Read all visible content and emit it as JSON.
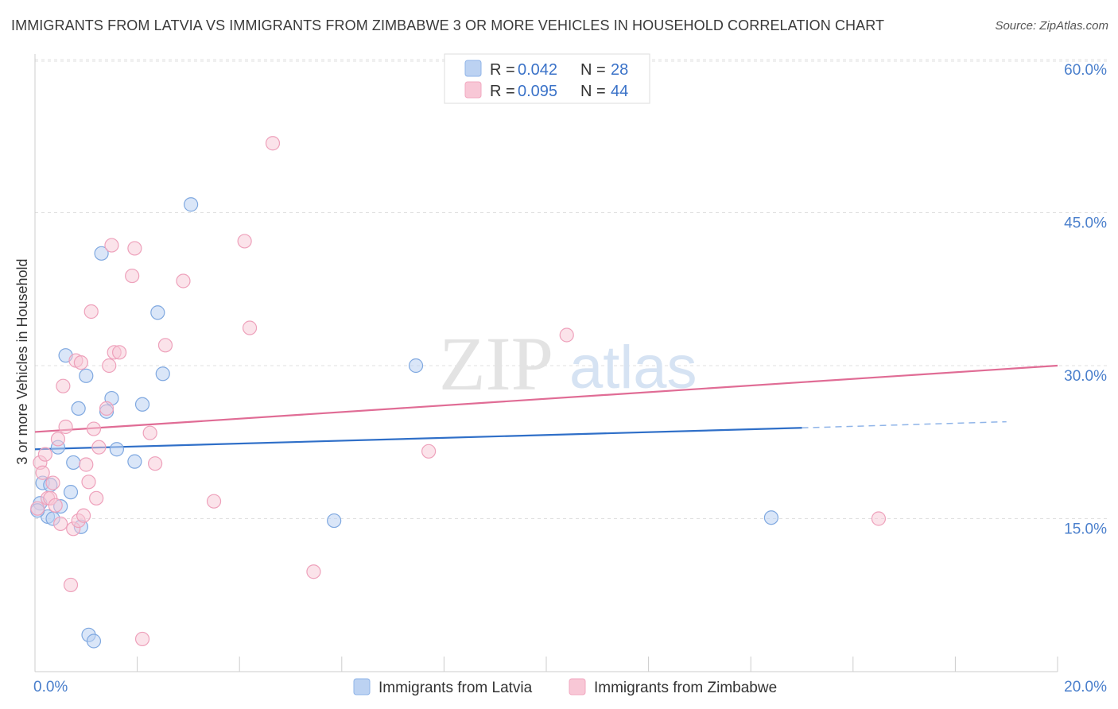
{
  "header": {
    "title": "IMMIGRANTS FROM LATVIA VS IMMIGRANTS FROM ZIMBABWE 3 OR MORE VEHICLES IN HOUSEHOLD CORRELATION CHART",
    "source": "Source: ZipAtlas.com"
  },
  "watermark": {
    "zip": "ZIP",
    "atlas": "atlas"
  },
  "legend": {
    "r_label": "R =",
    "n_label": "N =",
    "latvia": {
      "r": "0.042",
      "n": "28"
    },
    "zimbabwe": {
      "r": "0.095",
      "n": "44"
    }
  },
  "chart_data": {
    "type": "scatter",
    "title": "IMMIGRANTS FROM LATVIA VS IMMIGRANTS FROM ZIMBABWE 3 OR MORE VEHICLES IN HOUSEHOLD CORRELATION CHART",
    "ylabel": "3 or more Vehicles in Household",
    "xlim": [
      0,
      20
    ],
    "ylim": [
      0,
      60
    ],
    "x_tick_labels": [
      "0.0%",
      "20.0%"
    ],
    "y_ticks": [
      15,
      30,
      45,
      60
    ],
    "y_tick_labels": [
      "15.0%",
      "30.0%",
      "45.0%",
      "60.0%"
    ],
    "grid": "horizontal dashed",
    "legend_position": "top-center",
    "colors": {
      "latvia": "#8fb4e8",
      "latvia_line": "#2f6fc8",
      "zimbabwe": "#f2a8c0",
      "zimbabwe_line": "#e06c95"
    },
    "series": [
      {
        "name": "Immigrants from Latvia",
        "points": [
          [
            0.1,
            16.5
          ],
          [
            0.15,
            18.5
          ],
          [
            0.25,
            15.2
          ],
          [
            0.3,
            18.3
          ],
          [
            0.45,
            22.0
          ],
          [
            0.5,
            16.2
          ],
          [
            0.6,
            31.0
          ],
          [
            0.7,
            17.6
          ],
          [
            0.75,
            20.5
          ],
          [
            0.85,
            25.8
          ],
          [
            0.9,
            14.2
          ],
          [
            1.0,
            29.0
          ],
          [
            1.05,
            3.6
          ],
          [
            1.15,
            3.0
          ],
          [
            1.3,
            41.0
          ],
          [
            1.4,
            25.5
          ],
          [
            1.5,
            26.8
          ],
          [
            1.6,
            21.8
          ],
          [
            1.95,
            20.6
          ],
          [
            2.1,
            26.2
          ],
          [
            2.4,
            35.2
          ],
          [
            2.5,
            29.2
          ],
          [
            3.05,
            45.8
          ],
          [
            7.45,
            30.0
          ],
          [
            5.85,
            14.8
          ],
          [
            14.4,
            15.1
          ],
          [
            0.05,
            15.8
          ],
          [
            0.35,
            15.0
          ]
        ],
        "trend": {
          "x": [
            0,
            15.0
          ],
          "y": [
            21.8,
            23.9
          ]
        },
        "trend_extension": {
          "x": [
            15.0,
            19.0
          ],
          "y": [
            23.9,
            24.5
          ]
        }
      },
      {
        "name": "Immigrants from Zimbabwe",
        "points": [
          [
            0.05,
            16.0
          ],
          [
            0.1,
            20.5
          ],
          [
            0.15,
            19.5
          ],
          [
            0.2,
            21.3
          ],
          [
            0.25,
            17.0
          ],
          [
            0.3,
            17.0
          ],
          [
            0.35,
            18.5
          ],
          [
            0.45,
            22.8
          ],
          [
            0.5,
            14.5
          ],
          [
            0.55,
            28.0
          ],
          [
            0.6,
            24.0
          ],
          [
            0.7,
            8.5
          ],
          [
            0.75,
            14.0
          ],
          [
            0.8,
            30.5
          ],
          [
            0.85,
            14.8
          ],
          [
            0.9,
            30.3
          ],
          [
            0.95,
            15.3
          ],
          [
            1.0,
            20.3
          ],
          [
            1.05,
            18.6
          ],
          [
            1.1,
            35.3
          ],
          [
            1.15,
            23.8
          ],
          [
            1.2,
            17.0
          ],
          [
            1.25,
            22.0
          ],
          [
            1.4,
            25.8
          ],
          [
            1.45,
            30.0
          ],
          [
            1.5,
            41.8
          ],
          [
            1.55,
            31.3
          ],
          [
            1.65,
            31.3
          ],
          [
            1.9,
            38.8
          ],
          [
            1.95,
            41.5
          ],
          [
            2.1,
            3.2
          ],
          [
            2.25,
            23.4
          ],
          [
            2.35,
            20.4
          ],
          [
            2.55,
            32.0
          ],
          [
            2.9,
            38.3
          ],
          [
            3.5,
            16.7
          ],
          [
            4.1,
            42.2
          ],
          [
            4.2,
            33.7
          ],
          [
            4.65,
            51.8
          ],
          [
            5.45,
            9.8
          ],
          [
            7.7,
            21.6
          ],
          [
            10.4,
            33.0
          ],
          [
            16.5,
            15.0
          ],
          [
            0.4,
            16.3
          ]
        ],
        "trend": {
          "x": [
            0,
            20
          ],
          "y": [
            23.5,
            30.0
          ]
        }
      }
    ]
  },
  "bottom_legend": {
    "latvia": "Immigrants from Latvia",
    "zimbabwe": "Immigrants from Zimbabwe"
  }
}
